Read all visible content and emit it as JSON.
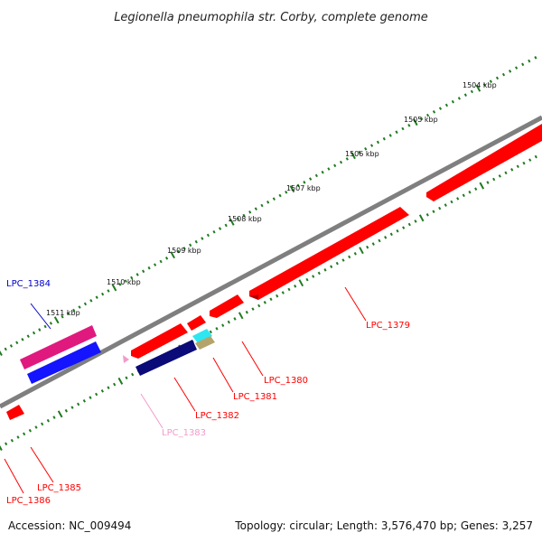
{
  "title": "Legionella pneumophila str. Corby, complete genome",
  "footer": {
    "accession": "Accession: NC_009494",
    "summary": "Topology: circular; Length: 3,576,470 bp; Genes: 3,257"
  },
  "scale_labels": [
    "1504 kbp",
    "1505 kbp",
    "1506 kbp",
    "1507 kbp",
    "1508 kbp",
    "1509 kbp",
    "1510 kbp",
    "1511 kbp"
  ],
  "genes": [
    {
      "name": "LPC_1379",
      "color": "#ff0000"
    },
    {
      "name": "LPC_1380",
      "color": "#ff0000"
    },
    {
      "name": "LPC_1381",
      "color": "#ff0000"
    },
    {
      "name": "LPC_1382",
      "color": "#ff0000"
    },
    {
      "name": "LPC_1383",
      "color": "#f39acb"
    },
    {
      "name": "LPC_1384",
      "color": "#0000cc"
    },
    {
      "name": "LPC_1385",
      "color": "#ff0000"
    },
    {
      "name": "LPC_1386",
      "color": "#ff0000"
    }
  ],
  "colors": {
    "backbone": "#7f7f7f",
    "tick": "#1f7a1f",
    "red": "#ff0000",
    "magenta": "#e0197f",
    "blue": "#1414ff",
    "navy": "#0a0a78",
    "cyan": "#2ee6f0",
    "khaki": "#b5a46a",
    "pink": "#f39acb"
  }
}
